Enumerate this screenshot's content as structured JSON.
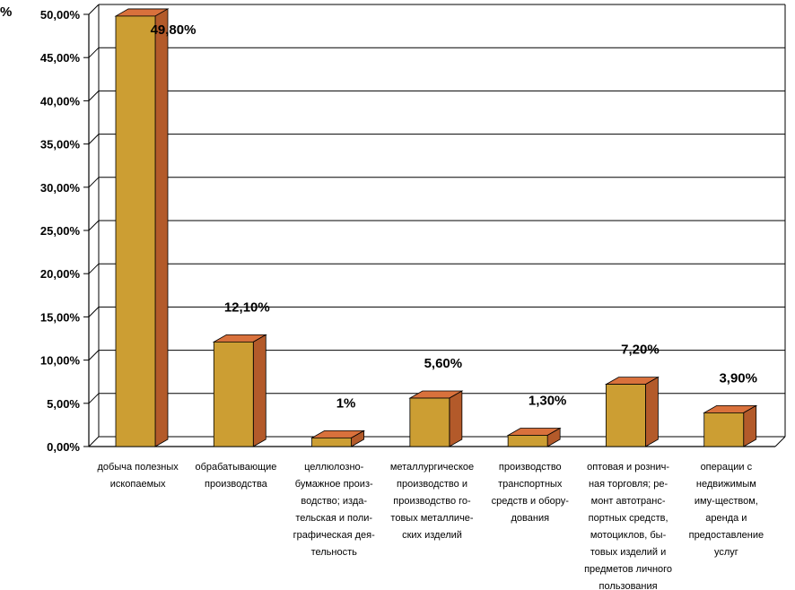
{
  "chart_data": {
    "type": "bar",
    "y_unit_label": "%",
    "categories": [
      [
        "добыча полезных",
        "ископаемых"
      ],
      [
        "обрабатывающие",
        "производства"
      ],
      [
        "целлюлозно-",
        "бумажное произ-",
        "водство; изда-",
        "тельская и поли-",
        "графическая дея-",
        "тельность"
      ],
      [
        "металлургическое",
        "производство и",
        "производство го-",
        "товых металличе-",
        "ских изделий"
      ],
      [
        "производство",
        "транспортных",
        "средств и обору-",
        "дования"
      ],
      [
        "оптовая и рознич-",
        "ная торговля; ре-",
        "монт автотранс-",
        "портных средств,",
        "мотоциклов, бы-",
        "товых изделий и",
        "предметов личного",
        "пользования"
      ],
      [
        "операции с",
        "недвижимым",
        "иму-ществом,",
        "аренда и",
        "предоставление",
        "услуг"
      ]
    ],
    "values": [
      49.8,
      12.1,
      1.0,
      5.6,
      1.3,
      7.2,
      3.9
    ],
    "data_labels": [
      "49,80%",
      "12,10%",
      "1%",
      "5,60%",
      "1,30%",
      "7,20%",
      "3,90%"
    ],
    "ylim": [
      0,
      50
    ],
    "yticks": [
      0,
      5,
      10,
      15,
      20,
      25,
      30,
      35,
      40,
      45,
      50
    ],
    "ytick_labels": [
      "0,00%",
      "5,00%",
      "10,00%",
      "15,00%",
      "20,00%",
      "25,00%",
      "30,00%",
      "35,00%",
      "40,00%",
      "45,00%",
      "50,00%"
    ],
    "grid": true,
    "legend": "none",
    "colors": {
      "bar_front": "#CC9E33",
      "bar_side": "#B35A2A",
      "bar_top": "#D9713C"
    }
  }
}
